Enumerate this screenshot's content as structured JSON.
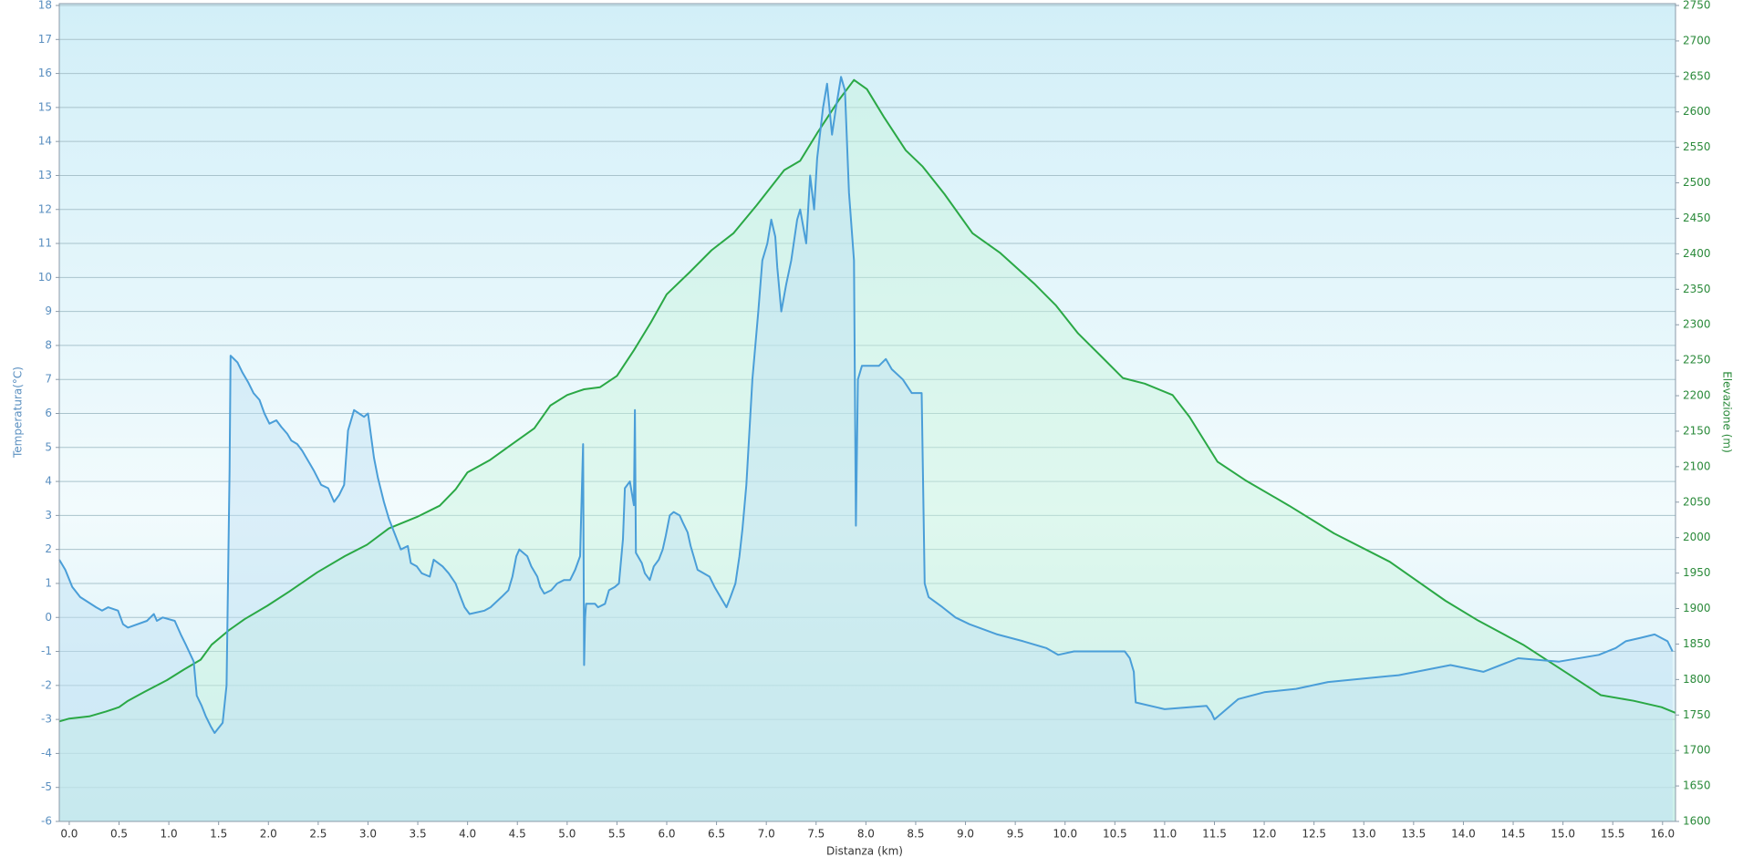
{
  "chart_data": {
    "type": "line",
    "xlabel": "Distanza  (km)",
    "ylabel": "Temperatura(°C)",
    "y2label": "Elevazione (m)",
    "xlim": [
      -0.1,
      16.13
    ],
    "ylim": [
      -6,
      18
    ],
    "y2lim": [
      1600,
      2750
    ],
    "grid": true,
    "xticks": [
      {
        "value": 0,
        "label": "0.0"
      },
      0.5,
      {
        "value": 1,
        "label": "1.0"
      },
      1.5,
      {
        "value": 2,
        "label": "2.0"
      },
      2.5,
      {
        "value": 3,
        "label": "3.0"
      },
      3.5,
      {
        "value": 4,
        "label": "4.0"
      },
      4.5,
      {
        "value": 5,
        "label": "5.0"
      },
      5.5,
      {
        "value": 6,
        "label": "6.0"
      },
      6.5,
      {
        "value": 7,
        "label": "7.0"
      },
      7.5,
      {
        "value": 8,
        "label": "8.0"
      },
      8.5,
      {
        "value": 9,
        "label": "9.0"
      },
      9.5,
      {
        "value": 10,
        "label": "10.0"
      },
      10.5,
      {
        "value": 11,
        "label": "11.0"
      },
      11.5,
      {
        "value": 12,
        "label": "12.0"
      },
      12.5,
      {
        "value": 13,
        "label": "13.0"
      },
      13.5,
      {
        "value": 14,
        "label": "14.0"
      },
      14.5,
      {
        "value": 15,
        "label": "15.0"
      },
      15.5,
      {
        "value": 16,
        "label": "16.0"
      }
    ],
    "yticks": [
      -6,
      -5,
      -4,
      -3,
      -2,
      -1,
      0,
      1,
      2,
      3,
      4,
      5,
      6,
      7,
      8,
      9,
      10,
      11,
      12,
      13,
      14,
      15,
      16,
      17,
      18
    ],
    "y2ticks": [
      1600,
      1650,
      1700,
      1750,
      1800,
      1850,
      1900,
      1950,
      2000,
      2050,
      2100,
      2150,
      2200,
      2250,
      2300,
      2350,
      2400,
      2450,
      2500,
      2550,
      2600,
      2650,
      2700,
      2750
    ],
    "series": [
      {
        "color": "#2aa845",
        "fill": "#c8f5dc",
        "axis": "y2",
        "x": [
          -0.1,
          0,
          0.2,
          0.37,
          0.5,
          0.59,
          0.76,
          0.98,
          1.15,
          1.32,
          1.43,
          1.6,
          1.76,
          1.99,
          2.21,
          2.49,
          2.77,
          2.99,
          3.21,
          3.49,
          3.72,
          3.88,
          4.0,
          4.22,
          4.44,
          4.67,
          4.83,
          5.0,
          5.17,
          5.33,
          5.5,
          5.67,
          5.84,
          6.0,
          6.23,
          6.45,
          6.67,
          6.9,
          7.18,
          7.34,
          7.51,
          7.73,
          7.88,
          8.01,
          8.18,
          8.4,
          8.57,
          8.79,
          9.07,
          9.35,
          9.69,
          9.91,
          10.13,
          10.36,
          10.58,
          10.8,
          11.08,
          11.25,
          11.53,
          11.81,
          12.25,
          12.7,
          13.26,
          13.82,
          14.15,
          14.6,
          15.04,
          15.38,
          15.71,
          15.99,
          16.13
        ],
        "values": [
          1741,
          1745,
          1748,
          1755,
          1761,
          1770,
          1783,
          1799,
          1814,
          1828,
          1849,
          1869,
          1885,
          1904,
          1924,
          1951,
          1974,
          1990,
          2013,
          2029,
          2045,
          2068,
          2092,
          2109,
          2131,
          2154,
          2186,
          2201,
          2209,
          2212,
          2228,
          2264,
          2303,
          2343,
          2374,
          2405,
          2429,
          2468,
          2518,
          2531,
          2570,
          2617,
          2645,
          2632,
          2593,
          2546,
          2523,
          2484,
          2429,
          2401,
          2358,
          2327,
          2288,
          2256,
          2225,
          2217,
          2201,
          2170,
          2107,
          2081,
          2045,
          2006,
          1966,
          1911,
          1883,
          1849,
          1809,
          1778,
          1770,
          1761,
          1753
        ]
      },
      {
        "color": "#4a9ed8",
        "fill": "#bfe0f5",
        "x": [
          -0.1,
          -0.04,
          0.03,
          0.11,
          0.27,
          0.33,
          0.39,
          0.49,
          0.54,
          0.59,
          0.78,
          0.85,
          0.88,
          0.94,
          1.06,
          1.12,
          1.17,
          1.25,
          1.28,
          1.33,
          1.37,
          1.42,
          1.46,
          1.54,
          1.58,
          1.61,
          1.62,
          1.69,
          1.74,
          1.8,
          1.85,
          1.91,
          1.96,
          2.01,
          2.08,
          2.13,
          2.19,
          2.23,
          2.29,
          2.34,
          2.4,
          2.46,
          2.53,
          2.6,
          2.66,
          2.71,
          2.76,
          2.8,
          2.86,
          2.91,
          2.96,
          3.0,
          3.06,
          3.1,
          3.16,
          3.21,
          3.33,
          3.4,
          3.43,
          3.49,
          3.54,
          3.62,
          3.66,
          3.75,
          3.81,
          3.88,
          3.93,
          3.97,
          4.02,
          4.17,
          4.23,
          4.34,
          4.41,
          4.45,
          4.49,
          4.52,
          4.6,
          4.64,
          4.7,
          4.73,
          4.77,
          4.84,
          4.9,
          4.97,
          5.03,
          5.08,
          5.13,
          5.16,
          5.17,
          5.18,
          5.19,
          5.28,
          5.31,
          5.38,
          5.42,
          5.48,
          5.52,
          5.56,
          5.58,
          5.63,
          5.67,
          5.68,
          5.69,
          5.75,
          5.78,
          5.83,
          5.87,
          5.92,
          5.96,
          5.99,
          6.03,
          6.07,
          6.13,
          6.16,
          6.21,
          6.24,
          6.27,
          6.31,
          6.37,
          6.43,
          6.48,
          6.56,
          6.6,
          6.64,
          6.69,
          6.73,
          6.76,
          6.8,
          6.86,
          6.92,
          6.96,
          7.01,
          7.05,
          7.09,
          7.11,
          7.15,
          7.2,
          7.25,
          7.31,
          7.34,
          7.4,
          7.44,
          7.48,
          7.51,
          7.57,
          7.61,
          7.66,
          7.7,
          7.75,
          7.79,
          7.83,
          7.88,
          7.9,
          7.92,
          7.96,
          8.13,
          8.2,
          8.26,
          8.37,
          8.46,
          8.56,
          8.59,
          8.63,
          8.77,
          8.9,
          9.04,
          9.32,
          9.58,
          9.81,
          9.93,
          10.09,
          10.6,
          10.65,
          10.69,
          10.7,
          10.71,
          11.0,
          11.42,
          11.47,
          11.5,
          11.74,
          12.0,
          12.32,
          12.64,
          12.99,
          13.35,
          13.87,
          14.2,
          14.55,
          14.96,
          15.36,
          15.53,
          15.63,
          15.78,
          15.92,
          16.05,
          16.1
        ],
        "values": [
          1.7,
          1.4,
          0.9,
          0.6,
          0.3,
          0.2,
          0.3,
          0.2,
          -0.2,
          -0.3,
          -0.1,
          0.1,
          -0.1,
          0.0,
          -0.1,
          -0.5,
          -0.8,
          -1.3,
          -2.3,
          -2.6,
          -2.9,
          -3.2,
          -3.4,
          -3.1,
          -2.0,
          4.3,
          7.7,
          7.5,
          7.2,
          6.9,
          6.6,
          6.4,
          6.0,
          5.7,
          5.8,
          5.6,
          5.4,
          5.2,
          5.1,
          4.9,
          4.6,
          4.3,
          3.9,
          3.8,
          3.4,
          3.6,
          3.9,
          5.5,
          6.1,
          6.0,
          5.9,
          6.0,
          4.7,
          4.1,
          3.4,
          2.9,
          2.0,
          2.1,
          1.6,
          1.5,
          1.3,
          1.2,
          1.7,
          1.5,
          1.3,
          1.0,
          0.6,
          0.3,
          0.1,
          0.2,
          0.3,
          0.6,
          0.8,
          1.2,
          1.8,
          2.0,
          1.8,
          1.5,
          1.2,
          0.9,
          0.7,
          0.8,
          1.0,
          1.1,
          1.1,
          1.4,
          1.8,
          5.1,
          -1.4,
          0.0,
          0.4,
          0.4,
          0.3,
          0.4,
          0.8,
          0.9,
          1.0,
          2.3,
          3.8,
          4.0,
          3.3,
          6.1,
          1.9,
          1.6,
          1.3,
          1.1,
          1.5,
          1.7,
          2.0,
          2.4,
          3.0,
          3.1,
          3.0,
          2.8,
          2.5,
          2.1,
          1.8,
          1.4,
          1.3,
          1.2,
          0.9,
          0.5,
          0.3,
          0.6,
          1.0,
          1.8,
          2.6,
          3.9,
          7.0,
          9.0,
          10.5,
          11.0,
          11.7,
          11.2,
          10.3,
          9.0,
          9.8,
          10.5,
          11.7,
          12.0,
          11.0,
          13.0,
          12.0,
          13.5,
          15.0,
          15.7,
          14.2,
          15.0,
          15.9,
          15.5,
          12.5,
          10.5,
          2.7,
          7.0,
          7.4,
          7.4,
          7.6,
          7.3,
          7.0,
          6.6,
          6.6,
          1.0,
          0.6,
          0.3,
          0.0,
          -0.2,
          -0.5,
          -0.7,
          -0.9,
          -1.1,
          -1.0,
          -1.0,
          -1.2,
          -1.6,
          -2.1,
          -2.5,
          -2.7,
          -2.6,
          -2.8,
          -3.0,
          -2.4,
          -2.2,
          -2.1,
          -1.9,
          -1.8,
          -1.7,
          -1.4,
          -1.6,
          -1.2,
          -1.3,
          -1.1,
          -0.9,
          -0.7,
          -0.6,
          -0.5,
          -0.7,
          -1.0
        ]
      }
    ]
  }
}
